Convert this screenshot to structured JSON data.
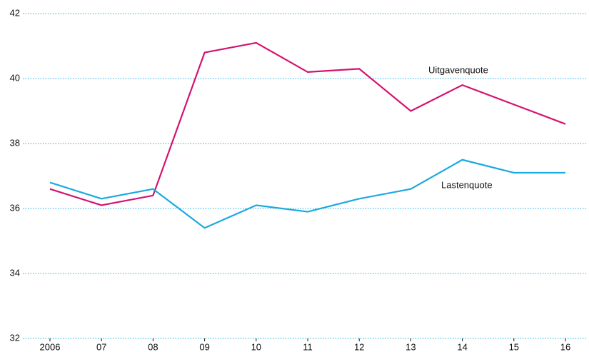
{
  "chart_data": {
    "type": "line",
    "categories": [
      "2006",
      "07",
      "08",
      "09",
      "10",
      "11",
      "12",
      "13",
      "14",
      "15",
      "16"
    ],
    "series": [
      {
        "name": "Uitgavenquote",
        "color": "#d4136f",
        "values": [
          36.6,
          36.1,
          36.4,
          40.8,
          41.1,
          40.2,
          40.3,
          39.0,
          39.8,
          39.2,
          38.6
        ]
      },
      {
        "name": "Lastenquote",
        "color": "#1aa9e0",
        "values": [
          36.8,
          36.3,
          36.6,
          35.4,
          36.1,
          35.9,
          36.3,
          36.6,
          37.5,
          37.1,
          37.1
        ]
      }
    ],
    "ylim": [
      32,
      42
    ],
    "yticks": [
      32,
      34,
      36,
      38,
      40,
      42
    ],
    "grid": true
  }
}
